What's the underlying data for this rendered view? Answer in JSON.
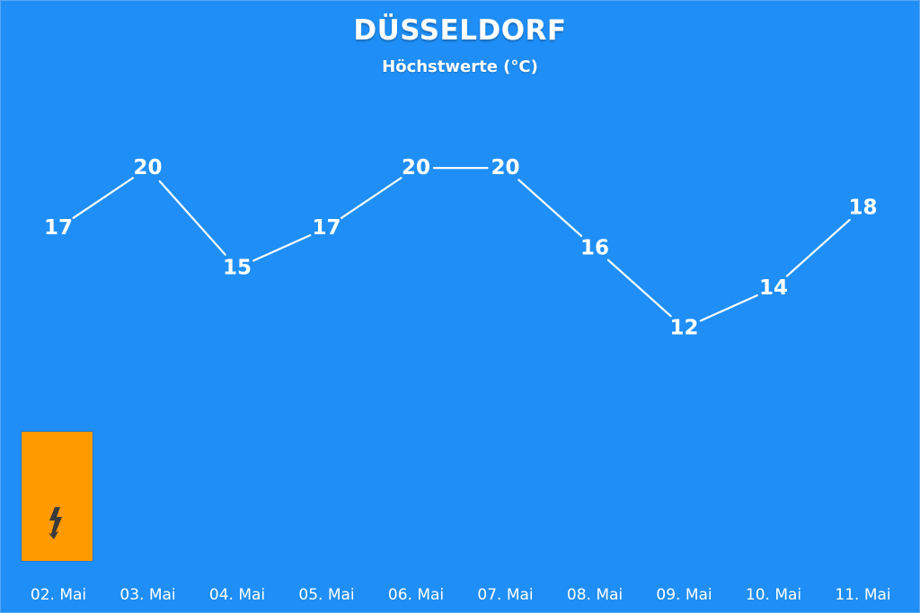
{
  "header": {
    "title": "DÜSSELDORF",
    "subtitle": "Höchstwerte (°C)"
  },
  "warning": {
    "icon": "lightning-icon",
    "color": "#ff9a00"
  },
  "colors": {
    "background": "#1f8ff7",
    "line": "#ffffff"
  },
  "chart_data": {
    "type": "line",
    "title": "DÜSSELDORF",
    "subtitle": "Höchstwerte (°C)",
    "categories": [
      "02. Mai",
      "03. Mai",
      "04. Mai",
      "05. Mai",
      "06. Mai",
      "07. Mai",
      "08. Mai",
      "09. Mai",
      "10. Mai",
      "11. Mai"
    ],
    "series": [
      {
        "values": [
          17,
          20,
          15,
          17,
          20,
          20,
          16,
          12,
          14,
          18
        ]
      }
    ],
    "xlabel": "",
    "ylabel": "",
    "data_labels": true,
    "grid": false,
    "legend": "none"
  }
}
